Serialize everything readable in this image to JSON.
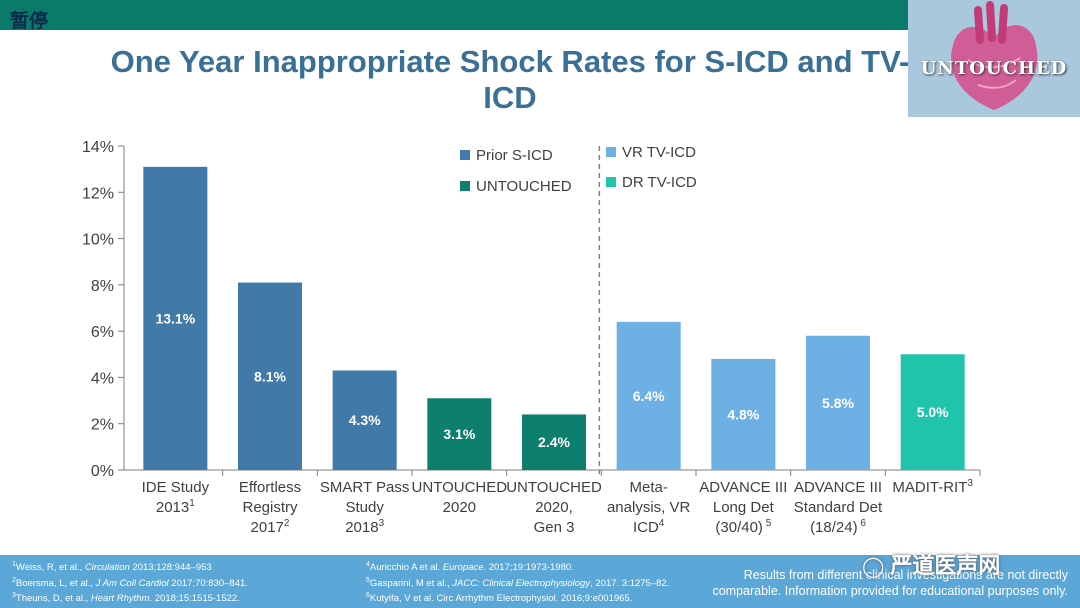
{
  "overlay": {
    "pause_label": "暂停",
    "watermark": "严道医声网",
    "watermark_icon": "wechat-icon"
  },
  "logo": {
    "text": "UNTOUCHED"
  },
  "title": "One Year Inappropriate Shock Rates for S-ICD and TV-ICD",
  "chart_data": {
    "type": "bar",
    "title": "One Year Inappropriate Shock Rates for S-ICD and TV-ICD",
    "ylim": [
      0,
      14
    ],
    "yticks": [
      "0%",
      "2%",
      "4%",
      "6%",
      "8%",
      "10%",
      "12%",
      "14%"
    ],
    "categories": [
      {
        "lines": [
          "IDE Study",
          "2013"
        ],
        "sup": "1"
      },
      {
        "lines": [
          "Effortless",
          "Registry",
          "2017"
        ],
        "sup": "2"
      },
      {
        "lines": [
          "SMART Pass",
          "Study",
          "2018"
        ],
        "sup": "3"
      },
      {
        "lines": [
          "UNTOUCHED",
          "2020"
        ],
        "sup": ""
      },
      {
        "lines": [
          "UNTOUCHED",
          "2020,",
          "Gen 3"
        ],
        "sup": ""
      },
      {
        "lines": [
          "Meta-",
          "analysis, VR",
          "ICD"
        ],
        "sup": "4"
      },
      {
        "lines": [
          "ADVANCE III",
          "Long Det",
          "(30/40)"
        ],
        "sup": " 5"
      },
      {
        "lines": [
          "ADVANCE III",
          "Standard Det",
          "(18/24)"
        ],
        "sup": " 6"
      },
      {
        "lines": [
          "MADIT-RIT"
        ],
        "sup": "3"
      }
    ],
    "values": [
      13.1,
      8.1,
      4.3,
      3.1,
      2.4,
      6.4,
      4.8,
      5.8,
      5.0
    ],
    "data_labels": [
      "13.1%",
      "8.1%",
      "4.3%",
      "3.1%",
      "2.4%",
      "6.4%",
      "4.8%",
      "5.8%",
      "5.0%"
    ],
    "series_index": [
      0,
      0,
      0,
      1,
      1,
      2,
      2,
      2,
      3
    ],
    "legend": [
      {
        "name": "Prior S-ICD",
        "color": "#417aa8"
      },
      {
        "name": "UNTOUCHED",
        "color": "#0e7e6e"
      },
      {
        "name": "VR TV-ICD",
        "color": "#6db1e4"
      },
      {
        "name": "DR TV-ICD",
        "color": "#20c4ad"
      }
    ],
    "divider": "dashed line between S-ICD and TV-ICD groups"
  },
  "footer": {
    "refs_left": [
      {
        "sup": "1",
        "pre": "Weiss, R, et al., ",
        "em": "Circulation",
        "post": " 2013;128:944–953"
      },
      {
        "sup": "2",
        "pre": "Boersma, L, et al., ",
        "em": "J Am Coll Cardiol",
        "post": " 2017;70:830–841."
      },
      {
        "sup": "3",
        "pre": "Theuns, D, et al., ",
        "em": "Heart Rhythm",
        "post": ". 2018;15:1515-1522."
      }
    ],
    "refs_right": [
      {
        "sup": "4",
        "pre": "Auricchio A et al. ",
        "em": "Europace",
        "post": ". 2017;19:1973-1980."
      },
      {
        "sup": "5",
        "pre": "Gasparini, M et al., ",
        "em": "JACC: Clinical Electrophysiology",
        "post": ", 2017. 3:1275–82."
      },
      {
        "sup": "6",
        "pre": "Kutyifa, V et al. Circ Arrhythm Electrophysiol. 2016;9:e001965.",
        "em": "",
        "post": ""
      }
    ],
    "disclaimer_line1": "Results from different clinical investigations are not directly",
    "disclaimer_line2": "comparable. Information provided for educational purposes only."
  }
}
